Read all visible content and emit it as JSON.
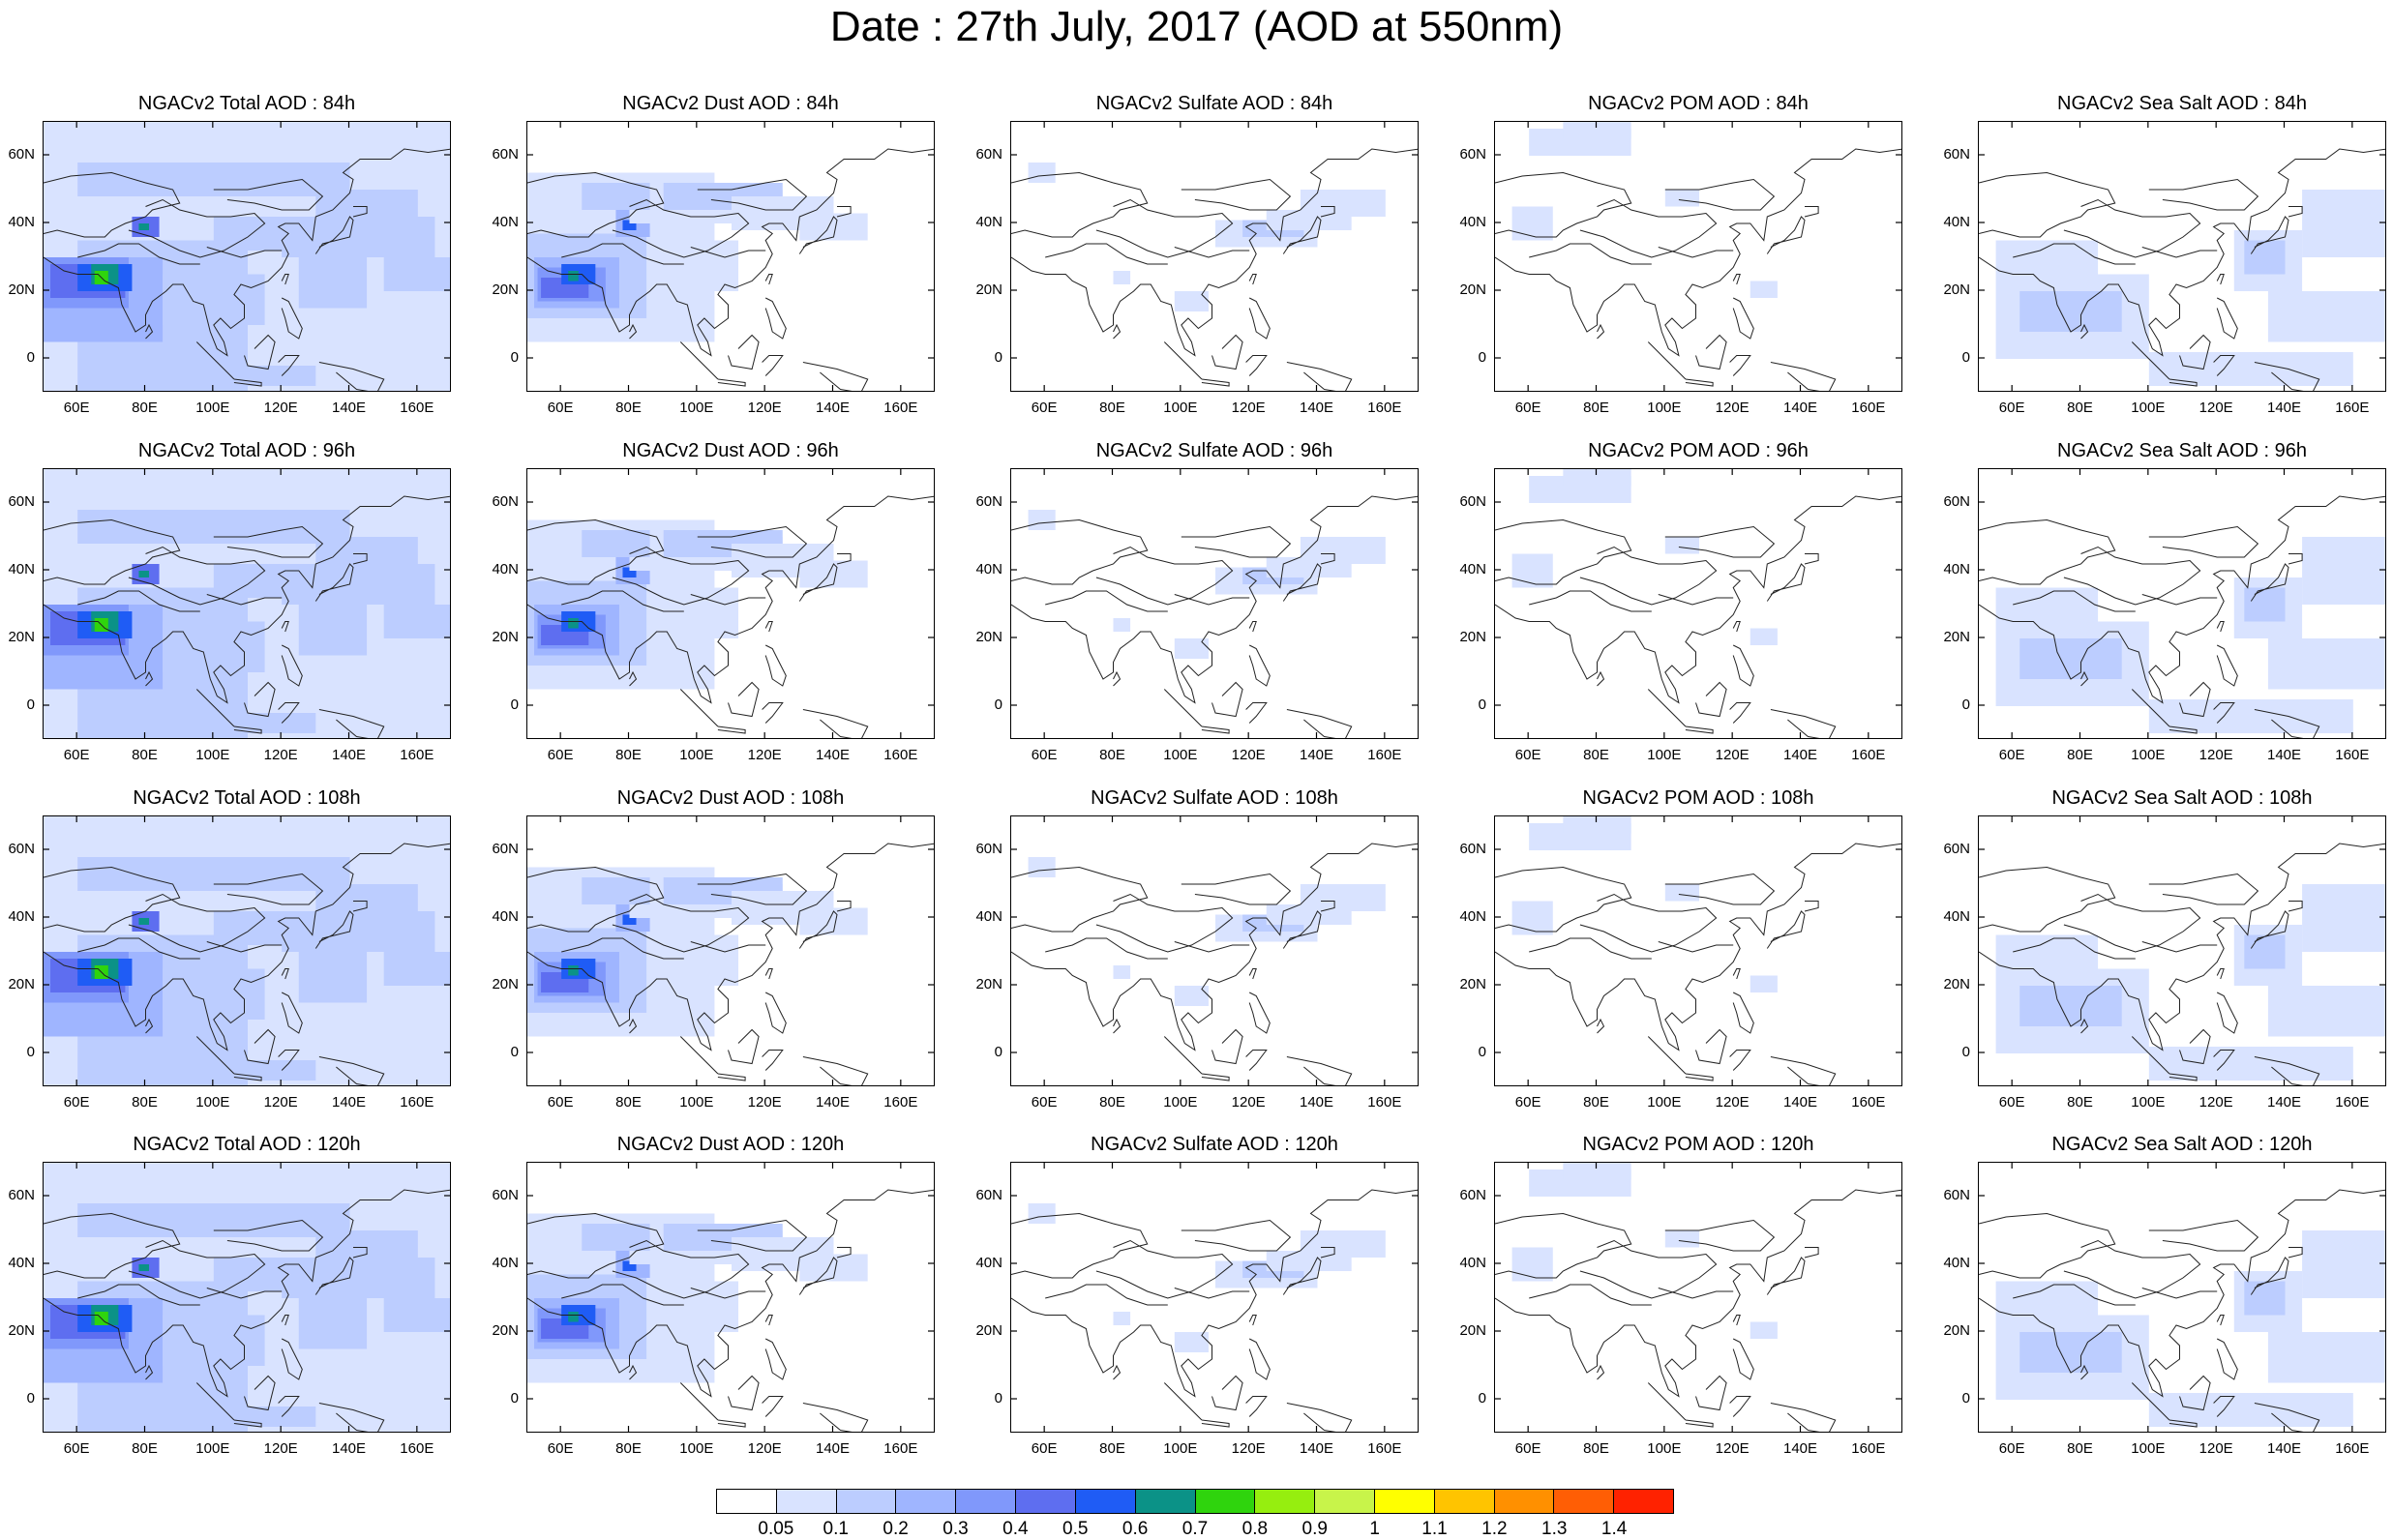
{
  "title": "Date : 27th July, 2017 (AOD at 550nm)",
  "map": {
    "lon_range": [
      50,
      170
    ],
    "lat_range": [
      -10,
      70
    ],
    "lon_ticks": [
      "60E",
      "80E",
      "100E",
      "120E",
      "140E",
      "160E"
    ],
    "lat_ticks": [
      "60N",
      "40N",
      "20N",
      "0"
    ]
  },
  "panel_rows": [
    {
      "hour": "84h",
      "titles": [
        "NGACv2 Total AOD : 84h",
        "NGACv2 Dust AOD : 84h",
        "NGACv2 Sulfate AOD : 84h",
        "NGACv2 POM AOD : 84h",
        "NGACv2 Sea Salt AOD : 84h"
      ]
    },
    {
      "hour": "96h",
      "titles": [
        "NGACv2 Total AOD : 96h",
        "NGACv2 Dust AOD : 96h",
        "NGACv2 Sulfate AOD : 96h",
        "NGACv2 POM AOD : 96h",
        "NGACv2 Sea Salt AOD : 96h"
      ]
    },
    {
      "hour": "108h",
      "titles": [
        "NGACv2 Total AOD : 108h",
        "NGACv2 Dust AOD : 108h",
        "NGACv2 Sulfate AOD : 108h",
        "NGACv2 POM AOD : 108h",
        "NGACv2 Sea Salt AOD : 108h"
      ]
    },
    {
      "hour": "120h",
      "titles": [
        "NGACv2 Total AOD : 120h",
        "NGACv2 Dust AOD : 120h",
        "NGACv2 Sulfate AOD : 120h",
        "NGACv2 POM AOD : 120h",
        "NGACv2 Sea Salt  AOD : 120h"
      ]
    }
  ],
  "colorbar": {
    "labels": [
      "0.05",
      "0.1",
      "0.2",
      "0.3",
      "0.4",
      "0.5",
      "0.6",
      "0.7",
      "0.8",
      "0.9",
      "1",
      "1.1",
      "1.2",
      "1.3",
      "1.4"
    ],
    "colors": [
      "#ffffff",
      "#d9e3ff",
      "#bccdff",
      "#9fb5ff",
      "#8098fb",
      "#5e6ef0",
      "#1f5cf5",
      "#0b9287",
      "#2fd40d",
      "#96ee0f",
      "#c8f44a",
      "#ffff00",
      "#ffc400",
      "#ff9000",
      "#ff5e05",
      "#ff2200"
    ]
  }
}
